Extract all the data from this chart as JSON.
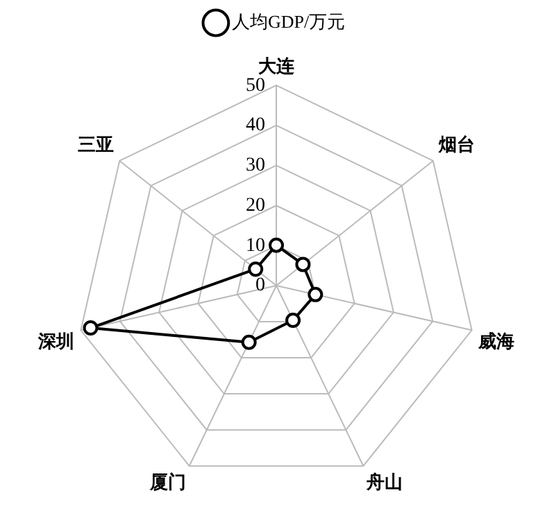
{
  "chart_data": {
    "type": "radar",
    "categories": [
      "大连",
      "烟台",
      "威海",
      "舟山",
      "厦门",
      "深圳",
      "三亚"
    ],
    "series": [
      {
        "name": "人均GDP/万元",
        "color": "#000000",
        "values": [
          10.1,
          8.5,
          10,
          9.6,
          15.7,
          47.5,
          6.6
        ]
      }
    ],
    "ylim": [
      0,
      50
    ],
    "yticks": [
      0,
      10,
      20,
      30,
      40,
      50
    ],
    "grid": true,
    "legend": "top",
    "marker": "circle",
    "line_style": "solid"
  }
}
